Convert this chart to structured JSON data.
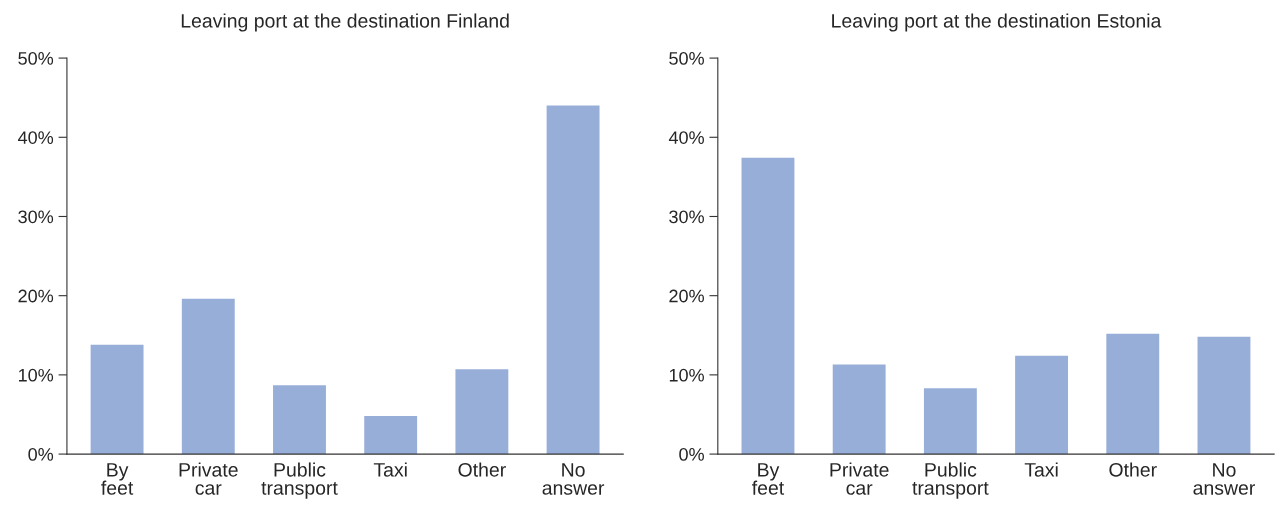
{
  "chart_data": [
    {
      "type": "bar",
      "title": "Leaving port at the destination Finland",
      "categories": [
        "By\nfeet",
        "Private\ncar",
        "Public\ntransport",
        "Taxi",
        "Other",
        "No\nanswer"
      ],
      "values": [
        13.8,
        19.6,
        8.7,
        4.8,
        10.7,
        44.0
      ],
      "color": "#97aed8",
      "ylim": [
        0,
        50
      ],
      "yticks": [
        {
          "value": 0,
          "label": "0%"
        },
        {
          "value": 10,
          "label": "10%"
        },
        {
          "value": 20,
          "label": "20%"
        },
        {
          "value": 30,
          "label": "30%"
        },
        {
          "value": 40,
          "label": "40%"
        },
        {
          "value": 50,
          "label": "50%"
        }
      ],
      "grid": false,
      "legend": false
    },
    {
      "type": "bar",
      "title": "Leaving port at the destination Estonia",
      "categories": [
        "By\nfeet",
        "Private\ncar",
        "Public\ntransport",
        "Taxi",
        "Other",
        "No\nanswer"
      ],
      "values": [
        37.4,
        11.3,
        8.3,
        12.4,
        15.2,
        14.8
      ],
      "color": "#97aed8",
      "ylim": [
        0,
        50
      ],
      "yticks": [
        {
          "value": 0,
          "label": "0%"
        },
        {
          "value": 10,
          "label": "10%"
        },
        {
          "value": 20,
          "label": "20%"
        },
        {
          "value": 30,
          "label": "30%"
        },
        {
          "value": 40,
          "label": "40%"
        },
        {
          "value": 50,
          "label": "50%"
        }
      ],
      "grid": false,
      "legend": false
    }
  ]
}
